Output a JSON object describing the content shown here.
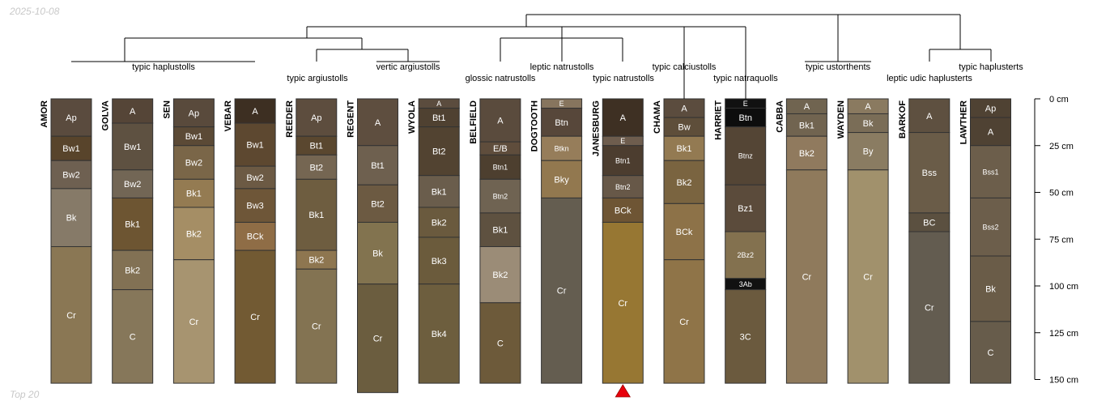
{
  "meta": {
    "date": "2025-10-08",
    "footer": "Top 20"
  },
  "colors": {
    "tree": "#000000",
    "border": "#333333",
    "marker": "#e8000b"
  },
  "depth_axis": {
    "max_cm": 150,
    "ticks": [
      {
        "cm": 0,
        "label": "0 cm"
      },
      {
        "cm": 25,
        "label": "25 cm"
      },
      {
        "cm": 50,
        "label": "50 cm"
      },
      {
        "cm": 75,
        "label": "75 cm"
      },
      {
        "cm": 100,
        "label": "100 cm"
      },
      {
        "cm": 125,
        "label": "125 cm"
      },
      {
        "cm": 150,
        "label": "150 cm"
      }
    ]
  },
  "groups": [
    {
      "label": "typic haplustolls",
      "from": 0,
      "to": 3
    },
    {
      "label": "typic argiustolls",
      "from": 4,
      "to": 4
    },
    {
      "label": "vertic argiustolls",
      "from": 5,
      "to": 6
    },
    {
      "label": "glossic natrustolls",
      "from": 7,
      "to": 7
    },
    {
      "label": "leptic natrustolls",
      "from": 8,
      "to": 8
    },
    {
      "label": "typic natrustolls",
      "from": 9,
      "to": 9
    },
    {
      "label": "typic calciustolls",
      "from": 10,
      "to": 10
    },
    {
      "label": "typic natraquolls",
      "from": 11,
      "to": 11
    },
    {
      "label": "typic ustorthents",
      "from": 12,
      "to": 13
    },
    {
      "label": "leptic udic haplusterts",
      "from": 14,
      "to": 14
    },
    {
      "label": "typic haplusterts",
      "from": 15,
      "to": 15
    }
  ],
  "profiles": [
    {
      "name": "AMOR",
      "horizons": [
        {
          "n": "Ap",
          "top": 0,
          "bot": 20,
          "c": "#5a4b3e"
        },
        {
          "n": "Bw1",
          "top": 20,
          "bot": 33,
          "c": "#58442b"
        },
        {
          "n": "Bw2",
          "top": 33,
          "bot": 48,
          "c": "#6e6051"
        },
        {
          "n": "Bk",
          "top": 48,
          "bot": 79,
          "c": "#867a68"
        },
        {
          "n": "Cr",
          "top": 79,
          "bot": 152,
          "c": "#8a7754"
        }
      ]
    },
    {
      "name": "GOLVA",
      "horizons": [
        {
          "n": "A",
          "top": 0,
          "bot": 13,
          "c": "#554537"
        },
        {
          "n": "Bw1",
          "top": 13,
          "bot": 38,
          "c": "#5e5141"
        },
        {
          "n": "Bw2",
          "top": 38,
          "bot": 53,
          "c": "#726655"
        },
        {
          "n": "Bk1",
          "top": 53,
          "bot": 81,
          "c": "#6d5532"
        },
        {
          "n": "Bk2",
          "top": 81,
          "bot": 102,
          "c": "#827154"
        },
        {
          "n": "C",
          "top": 102,
          "bot": 152,
          "c": "#86775a"
        }
      ]
    },
    {
      "name": "SEN",
      "horizons": [
        {
          "n": "Ap",
          "top": 0,
          "bot": 15,
          "c": "#594a3c"
        },
        {
          "n": "Bw1",
          "top": 15,
          "bot": 25,
          "c": "#5b4a36"
        },
        {
          "n": "Bw2",
          "top": 25,
          "bot": 43,
          "c": "#7a6648"
        },
        {
          "n": "Bk1",
          "top": 43,
          "bot": 58,
          "c": "#947b52"
        },
        {
          "n": "Bk2",
          "top": 58,
          "bot": 86,
          "c": "#a58e65"
        },
        {
          "n": "Cr",
          "top": 86,
          "bot": 152,
          "c": "#a79470"
        }
      ]
    },
    {
      "name": "VEBAR",
      "horizons": [
        {
          "n": "A",
          "top": 0,
          "bot": 13,
          "c": "#3d2f22"
        },
        {
          "n": "Bw1",
          "top": 13,
          "bot": 36,
          "c": "#5d4830"
        },
        {
          "n": "Bw2",
          "top": 36,
          "bot": 48,
          "c": "#6c5a44"
        },
        {
          "n": "Bw3",
          "top": 48,
          "bot": 66,
          "c": "#6e5638"
        },
        {
          "n": "BCk",
          "top": 66,
          "bot": 81,
          "c": "#8f6d46"
        },
        {
          "n": "Cr",
          "top": 81,
          "bot": 152,
          "c": "#725a33"
        }
      ]
    },
    {
      "name": "REEDER",
      "horizons": [
        {
          "n": "Ap",
          "top": 0,
          "bot": 20,
          "c": "#5d4d3e"
        },
        {
          "n": "Bt1",
          "top": 20,
          "bot": 30,
          "c": "#5a472f"
        },
        {
          "n": "Bt2",
          "top": 30,
          "bot": 43,
          "c": "#756652"
        },
        {
          "n": "Bk1",
          "top": 43,
          "bot": 81,
          "c": "#6e5d40"
        },
        {
          "n": "Bk2",
          "top": 81,
          "bot": 91,
          "c": "#8e7650"
        },
        {
          "n": "Cr",
          "top": 91,
          "bot": 152,
          "c": "#837352"
        }
      ]
    },
    {
      "name": "REGENT",
      "horizons": [
        {
          "n": "A",
          "top": 0,
          "bot": 25,
          "c": "#5e4e3f"
        },
        {
          "n": "Bt1",
          "top": 25,
          "bot": 46,
          "c": "#6e604f"
        },
        {
          "n": "Bt2",
          "top": 46,
          "bot": 66,
          "c": "#6c5a42"
        },
        {
          "n": "Bk",
          "top": 66,
          "bot": 99,
          "c": "#82734f"
        },
        {
          "n": "Cr",
          "top": 99,
          "bot": 157,
          "c": "#6b5d3f"
        }
      ]
    },
    {
      "name": "WYOLA",
      "horizons": [
        {
          "n": "A",
          "top": 0,
          "bot": 5,
          "c": "#5b4c3e"
        },
        {
          "n": "Bt1",
          "top": 5,
          "bot": 15,
          "c": "#4f4131"
        },
        {
          "n": "Bt2",
          "top": 15,
          "bot": 41,
          "c": "#524331"
        },
        {
          "n": "Bk1",
          "top": 41,
          "bot": 58,
          "c": "#6a5d4c"
        },
        {
          "n": "Bk2",
          "top": 58,
          "bot": 74,
          "c": "#6a5a3e"
        },
        {
          "n": "Bk3",
          "top": 74,
          "bot": 99,
          "c": "#6b5b3c"
        },
        {
          "n": "Bk4",
          "top": 99,
          "bot": 152,
          "c": "#6d5e3e"
        }
      ]
    },
    {
      "name": "BELFIELD",
      "horizons": [
        {
          "n": "A",
          "top": 0,
          "bot": 23,
          "c": "#5a4b3d"
        },
        {
          "n": "E/B",
          "top": 23,
          "bot": 30,
          "c": "#5f4d3c"
        },
        {
          "n": "Btn1",
          "top": 30,
          "bot": 43,
          "c": "#4d3f2f"
        },
        {
          "n": "Btn2",
          "top": 43,
          "bot": 61,
          "c": "#6f6352"
        },
        {
          "n": "Bk1",
          "top": 61,
          "bot": 79,
          "c": "#5e5140"
        },
        {
          "n": "Bk2",
          "top": 79,
          "bot": 109,
          "c": "#9b8c77"
        },
        {
          "n": "C",
          "top": 109,
          "bot": 152,
          "c": "#6d5a3a"
        }
      ]
    },
    {
      "name": "DOGTOOTH",
      "horizons": [
        {
          "n": "E",
          "top": 0,
          "bot": 5,
          "c": "#87755e"
        },
        {
          "n": "Btn",
          "top": 5,
          "bot": 20,
          "c": "#57473a"
        },
        {
          "n": "Btkn",
          "top": 20,
          "bot": 33,
          "c": "#967d5a"
        },
        {
          "n": "Bky",
          "top": 33,
          "bot": 53,
          "c": "#92784f"
        },
        {
          "n": "Cr",
          "top": 53,
          "bot": 152,
          "c": "#645d50"
        }
      ]
    },
    {
      "name": "JANESBURG",
      "horizons": [
        {
          "n": "A",
          "top": 0,
          "bot": 20,
          "c": "#3e3023"
        },
        {
          "n": "E",
          "top": 20,
          "bot": 25,
          "c": "#6e5d4e"
        },
        {
          "n": "Btn1",
          "top": 25,
          "bot": 41,
          "c": "#4c3d2f"
        },
        {
          "n": "Btn2",
          "top": 41,
          "bot": 53,
          "c": "#675848"
        },
        {
          "n": "BCk",
          "top": 53,
          "bot": 66,
          "c": "#6e5534"
        },
        {
          "n": "Cr",
          "top": 66,
          "bot": 152,
          "c": "#977733"
        }
      ]
    },
    {
      "name": "CHAMA",
      "horizons": [
        {
          "n": "A",
          "top": 0,
          "bot": 10,
          "c": "#5b4c3e"
        },
        {
          "n": "Bw",
          "top": 10,
          "bot": 20,
          "c": "#5e4e3a"
        },
        {
          "n": "Bk1",
          "top": 20,
          "bot": 33,
          "c": "#937a52"
        },
        {
          "n": "Bk2",
          "top": 33,
          "bot": 56,
          "c": "#7a6440"
        },
        {
          "n": "BCk",
          "top": 56,
          "bot": 86,
          "c": "#8d7248"
        },
        {
          "n": "Cr",
          "top": 86,
          "bot": 152,
          "c": "#8f7448"
        }
      ]
    },
    {
      "name": "HARRIET",
      "horizons": [
        {
          "n": "E",
          "top": 0,
          "bot": 5,
          "c": "#111111"
        },
        {
          "n": "Btn",
          "top": 5,
          "bot": 15,
          "c": "#0d0d0d"
        },
        {
          "n": "Btnz",
          "top": 15,
          "bot": 46,
          "c": "#544535"
        },
        {
          "n": "Bz1",
          "top": 46,
          "bot": 71,
          "c": "#5b4b3b"
        },
        {
          "n": "2Bz2",
          "top": 71,
          "bot": 96,
          "c": "#83714f"
        },
        {
          "n": "3Ab",
          "top": 96,
          "bot": 102,
          "c": "#111111"
        },
        {
          "n": "3C",
          "top": 102,
          "bot": 152,
          "c": "#6b5a3e"
        }
      ]
    },
    {
      "name": "CABBA",
      "horizons": [
        {
          "n": "A",
          "top": 0,
          "bot": 8,
          "c": "#706450"
        },
        {
          "n": "Bk1",
          "top": 8,
          "bot": 20,
          "c": "#716450"
        },
        {
          "n": "Bk2",
          "top": 20,
          "bot": 38,
          "c": "#907a5e"
        },
        {
          "n": "Cr",
          "top": 38,
          "bot": 152,
          "c": "#8f7a5c"
        }
      ]
    },
    {
      "name": "WAYDEN",
      "horizons": [
        {
          "n": "A",
          "top": 0,
          "bot": 8,
          "c": "#8a7a60"
        },
        {
          "n": "Bk",
          "top": 8,
          "bot": 18,
          "c": "#7a6d57"
        },
        {
          "n": "By",
          "top": 18,
          "bot": 38,
          "c": "#8a7c62"
        },
        {
          "n": "Cr",
          "top": 38,
          "bot": 152,
          "c": "#a1916c"
        }
      ]
    },
    {
      "name": "BARKOF",
      "horizons": [
        {
          "n": "A",
          "top": 0,
          "bot": 18,
          "c": "#5e5040"
        },
        {
          "n": "Bss",
          "top": 18,
          "bot": 61,
          "c": "#6a5c48"
        },
        {
          "n": "BC",
          "top": 61,
          "bot": 71,
          "c": "#5b5040"
        },
        {
          "n": "Cr",
          "top": 71,
          "bot": 152,
          "c": "#635c50"
        }
      ]
    },
    {
      "name": "LAWTHER",
      "horizons": [
        {
          "n": "Ap",
          "top": 0,
          "bot": 10,
          "c": "#4f4233"
        },
        {
          "n": "A",
          "top": 10,
          "bot": 25,
          "c": "#4f4233"
        },
        {
          "n": "Bss1",
          "top": 25,
          "bot": 53,
          "c": "#6c5e4b"
        },
        {
          "n": "Bss2",
          "top": 53,
          "bot": 84,
          "c": "#6c5e4b"
        },
        {
          "n": "Bk",
          "top": 84,
          "bot": 119,
          "c": "#6a5c48"
        },
        {
          "n": "C",
          "top": 119,
          "bot": 152,
          "c": "#675c4b"
        }
      ]
    }
  ],
  "marker": {
    "profile_index": 9
  }
}
